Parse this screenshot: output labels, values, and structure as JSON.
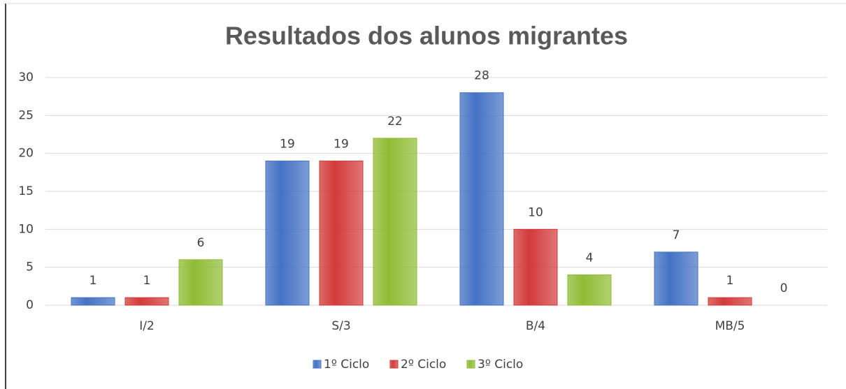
{
  "chart_data": {
    "type": "bar",
    "title": "Resultados dos alunos migrantes",
    "categories": [
      "I/2",
      "S/3",
      "B/4",
      "MB/5"
    ],
    "series": [
      {
        "name": "1º Ciclo",
        "color": "#4472c4",
        "values": [
          1,
          19,
          28,
          7
        ]
      },
      {
        "name": "2º Ciclo",
        "color": "#d23a3a",
        "values": [
          1,
          19,
          10,
          1
        ]
      },
      {
        "name": "3º Ciclo",
        "color": "#8fbc34",
        "values": [
          6,
          22,
          4,
          0
        ]
      }
    ],
    "ylim": [
      0,
      30
    ],
    "yticks": [
      0,
      5,
      10,
      15,
      20,
      25,
      30
    ],
    "grid": true,
    "legend": "bottom"
  }
}
